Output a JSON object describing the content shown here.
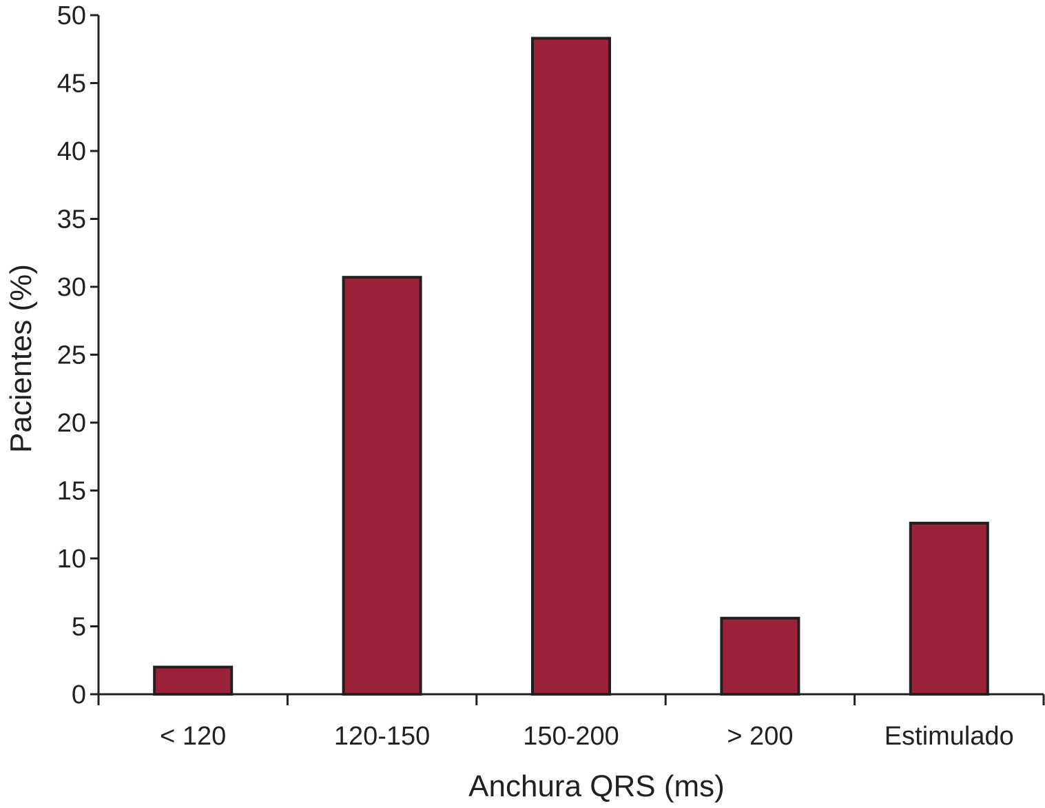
{
  "chart_data": {
    "type": "bar",
    "title": "",
    "xlabel": "Anchura QRS (ms)",
    "ylabel": "Pacientes (%)",
    "categories": [
      "< 120",
      "120-150",
      "150-200",
      "> 200",
      "Estimulado"
    ],
    "values": [
      2.0,
      30.7,
      48.3,
      5.6,
      12.6
    ],
    "ylim": [
      0,
      50
    ],
    "yticks": [
      "0",
      "5",
      "10",
      "15",
      "20",
      "25",
      "30",
      "35",
      "40",
      "45",
      "50"
    ],
    "grid": false,
    "legend": "none",
    "bar_color": "#9b2239",
    "edge_color": "#231f20"
  }
}
